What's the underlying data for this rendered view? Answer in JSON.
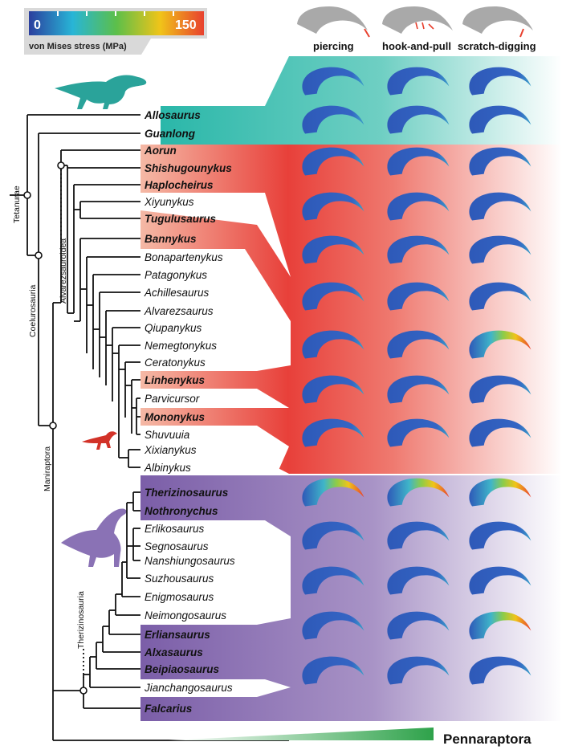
{
  "legend": {
    "min_label": "0",
    "max_label": "150",
    "caption": "von Mises stress (MPa)"
  },
  "columns": [
    "piercing",
    "hook-and-pull",
    "scratch-digging"
  ],
  "clades": {
    "tetanurae": "Tetanurae",
    "coelurosauria": "Coelurosauria",
    "maniraptora": "Maniraptora",
    "alvarezsauroidea": "Alvarezsauroidea",
    "therizinosauria": "Therizinosauria",
    "pennaraptora": "Pennaraptora"
  },
  "taxa": [
    {
      "name": "Allosaurus",
      "bold": true
    },
    {
      "name": "Guanlong",
      "bold": true
    },
    {
      "name": "Aorun",
      "bold": true
    },
    {
      "name": "Shishugounykus",
      "bold": true
    },
    {
      "name": "Haplocheirus",
      "bold": true
    },
    {
      "name": "Xiyunykus",
      "bold": false
    },
    {
      "name": "Tugulusaurus",
      "bold": true
    },
    {
      "name": "Bannykus",
      "bold": true
    },
    {
      "name": "Bonapartenykus",
      "bold": false
    },
    {
      "name": "Patagonykus",
      "bold": false
    },
    {
      "name": "Achillesaurus",
      "bold": false
    },
    {
      "name": "Alvarezsaurus",
      "bold": false
    },
    {
      "name": "Qiupanykus",
      "bold": false
    },
    {
      "name": "Nemegtonykus",
      "bold": false
    },
    {
      "name": "Ceratonykus",
      "bold": false
    },
    {
      "name": "Linhenykus",
      "bold": true
    },
    {
      "name": "Parvicursor",
      "bold": false
    },
    {
      "name": "Mononykus",
      "bold": true
    },
    {
      "name": "Shuvuuia",
      "bold": false
    },
    {
      "name": "Xixianykus",
      "bold": false
    },
    {
      "name": "Albinykus",
      "bold": false
    },
    {
      "name": "Therizinosaurus",
      "bold": true
    },
    {
      "name": "Nothronychus",
      "bold": true
    },
    {
      "name": "Erlikosaurus",
      "bold": false
    },
    {
      "name": "Segnosaurus",
      "bold": false
    },
    {
      "name": "Nanshiungosaurus",
      "bold": false
    },
    {
      "name": "Suzhousaurus",
      "bold": false
    },
    {
      "name": "Enigmosaurus",
      "bold": false
    },
    {
      "name": "Neimongosaurus",
      "bold": false
    },
    {
      "name": "Erliansaurus",
      "bold": true
    },
    {
      "name": "Alxasaurus",
      "bold": true
    },
    {
      "name": "Beipiaosaurus",
      "bold": true
    },
    {
      "name": "Jianchangosaurus",
      "bold": false
    },
    {
      "name": "Falcarius",
      "bold": true
    }
  ],
  "colors": {
    "cb_blue": "#2b3f9e",
    "cb_cyan": "#28b5d6",
    "cb_green": "#5cbf4a",
    "cb_yellow": "#f0c419",
    "cb_red": "#e8402e",
    "teal_band": "#2ab7a9",
    "red_band": "#e8403a",
    "purple_band": "#7b5ea8",
    "claw_blue": "#2e59b8",
    "penna_green": "#2ea24a"
  }
}
